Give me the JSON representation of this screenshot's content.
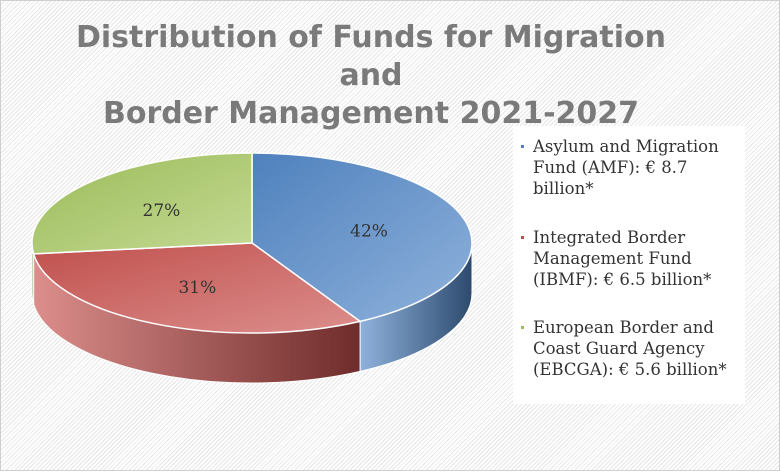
{
  "chart_data": {
    "type": "pie",
    "title_lines": [
      "Distribution of Funds for Migration and",
      "Border Management 2021-2027"
    ],
    "slices": [
      {
        "name": "Asylum and Migration Fund (AMF)",
        "value": 8.7,
        "percent_label": "42%",
        "legend_lines": [
          "Asylum and Migration",
          "Fund (AMF): € 8.7 billion*"
        ],
        "color": "#4f81bd",
        "color_light": "#8fb2dc",
        "color_dark": "#2d4a6e"
      },
      {
        "name": "Integrated Border Management Fund (IBMF)",
        "value": 6.5,
        "percent_label": "31%",
        "legend_lines": [
          "Integrated Border",
          "Management Fund",
          "(IBMF): € 6.5 billion*"
        ],
        "color": "#c0504d",
        "color_light": "#dc8e8c",
        "color_dark": "#6e2c2a"
      },
      {
        "name": "European Border and Coast Guard Agency (EBCGA)",
        "value": 5.6,
        "percent_label": "27%",
        "legend_lines": [
          "European Border and",
          "Coast Guard Agency",
          "(EBCGA):     € 5.6 billion*"
        ],
        "color": "#9bbb59",
        "color_light": "#c4da94",
        "color_dark": "#5e7530"
      }
    ],
    "unit": "billion €",
    "legend_position": "right"
  }
}
